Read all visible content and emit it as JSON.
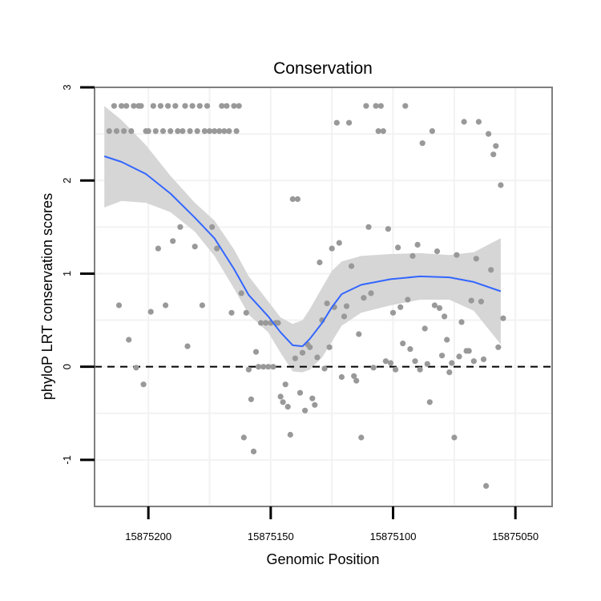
{
  "chart_data": {
    "type": "scatter",
    "title": "Conservation",
    "xlabel": "Genomic Position",
    "ylabel": "phyloP LRT conservation scores",
    "x_reversed": true,
    "xlim": [
      15875035,
      15875222
    ],
    "ylim": [
      -1.5,
      3.0
    ],
    "x_ticks": [
      15875200,
      15875150,
      15875100,
      15875050
    ],
    "x_tick_labels": [
      "15875200",
      "15875150",
      "15875100",
      "15875050"
    ],
    "y_ticks": [
      -1,
      0,
      1,
      2,
      3
    ],
    "y_tick_labels": [
      "-1",
      "0",
      "1",
      "2",
      "3"
    ],
    "reference_line": {
      "y": 0,
      "style": "dashed"
    },
    "colors": {
      "points": "#999999",
      "smooth": "#3366ff",
      "ribbon": "#d6d6d6",
      "grid": "#f2f2f2",
      "panel_border": "#7f7f7f",
      "reference": "#000000"
    },
    "points": [
      [
        15875216,
        2.53
      ],
      [
        15875214,
        2.8
      ],
      [
        15875213,
        2.53
      ],
      [
        15875212,
        0.66
      ],
      [
        15875211,
        2.8
      ],
      [
        15875210,
        2.53
      ],
      [
        15875209,
        2.8
      ],
      [
        15875208,
        0.29
      ],
      [
        15875207,
        2.53
      ],
      [
        15875206,
        2.8
      ],
      [
        15875205,
        -0.01
      ],
      [
        15875204,
        2.8
      ],
      [
        15875203,
        2.8
      ],
      [
        15875202,
        -0.19
      ],
      [
        15875201,
        2.53
      ],
      [
        15875200,
        2.53
      ],
      [
        15875199,
        0.59
      ],
      [
        15875198,
        2.8
      ],
      [
        15875197,
        2.53
      ],
      [
        15875196,
        1.27
      ],
      [
        15875195,
        2.8
      ],
      [
        15875194,
        2.53
      ],
      [
        15875193,
        0.66
      ],
      [
        15875192,
        2.8
      ],
      [
        15875191,
        2.53
      ],
      [
        15875190,
        1.35
      ],
      [
        15875189,
        2.8
      ],
      [
        15875188,
        2.53
      ],
      [
        15875187,
        1.5
      ],
      [
        15875186,
        2.53
      ],
      [
        15875185,
        2.8
      ],
      [
        15875184,
        0.22
      ],
      [
        15875183,
        2.53
      ],
      [
        15875182,
        2.8
      ],
      [
        15875181,
        1.29
      ],
      [
        15875180,
        2.53
      ],
      [
        15875179,
        2.8
      ],
      [
        15875178,
        0.66
      ],
      [
        15875177,
        2.53
      ],
      [
        15875176,
        2.8
      ],
      [
        15875175,
        2.53
      ],
      [
        15875174,
        1.5
      ],
      [
        15875173,
        2.53
      ],
      [
        15875172,
        1.27
      ],
      [
        15875171,
        2.53
      ],
      [
        15875170,
        2.8
      ],
      [
        15875169,
        2.53
      ],
      [
        15875168,
        2.8
      ],
      [
        15875167,
        2.53
      ],
      [
        15875166,
        0.58
      ],
      [
        15875165,
        2.8
      ],
      [
        15875164,
        2.53
      ],
      [
        15875163,
        2.8
      ],
      [
        15875162,
        0.79
      ],
      [
        15875161,
        -0.76
      ],
      [
        15875160,
        0.58
      ],
      [
        15875159,
        -0.03
      ],
      [
        15875158,
        -0.35
      ],
      [
        15875157,
        -0.91
      ],
      [
        15875156,
        0.16
      ],
      [
        15875155,
        0.0
      ],
      [
        15875154,
        0.47
      ],
      [
        15875153,
        0.0
      ],
      [
        15875152,
        0.47
      ],
      [
        15875151,
        0.0
      ],
      [
        15875150,
        0.47
      ],
      [
        15875149,
        0.0
      ],
      [
        15875148,
        0.47
      ],
      [
        15875147,
        0.47
      ],
      [
        15875146,
        -0.32
      ],
      [
        15875145,
        -0.38
      ],
      [
        15875144,
        -0.19
      ],
      [
        15875143,
        -0.43
      ],
      [
        15875142,
        -0.73
      ],
      [
        15875141,
        1.8
      ],
      [
        15875140,
        0.09
      ],
      [
        15875139,
        1.8
      ],
      [
        15875138,
        -0.28
      ],
      [
        15875137,
        0.15
      ],
      [
        15875136,
        -0.47
      ],
      [
        15875135,
        0.24
      ],
      [
        15875134,
        0.21
      ],
      [
        15875133,
        -0.34
      ],
      [
        15875132,
        -0.41
      ],
      [
        15875131,
        0.1
      ],
      [
        15875130,
        1.12
      ],
      [
        15875129,
        0.5
      ],
      [
        15875128,
        -0.02
      ],
      [
        15875127,
        0.68
      ],
      [
        15875126,
        0.21
      ],
      [
        15875125,
        1.27
      ],
      [
        15875124,
        0.64
      ],
      [
        15875123,
        2.62
      ],
      [
        15875122,
        1.33
      ],
      [
        15875121,
        -0.11
      ],
      [
        15875120,
        0.54
      ],
      [
        15875119,
        0.65
      ],
      [
        15875118,
        2.62
      ],
      [
        15875117,
        1.08
      ],
      [
        15875116,
        -0.1
      ],
      [
        15875115,
        -0.15
      ],
      [
        15875114,
        0.35
      ],
      [
        15875113,
        -0.76
      ],
      [
        15875112,
        0.74
      ],
      [
        15875111,
        2.8
      ],
      [
        15875110,
        1.5
      ],
      [
        15875109,
        0.79
      ],
      [
        15875108,
        -0.01
      ],
      [
        15875107,
        2.8
      ],
      [
        15875106,
        2.53
      ],
      [
        15875105,
        2.8
      ],
      [
        15875104,
        2.53
      ],
      [
        15875103,
        0.06
      ],
      [
        15875102,
        1.48
      ],
      [
        15875101,
        0.04
      ],
      [
        15875100,
        0.58
      ],
      [
        15875099,
        -0.03
      ],
      [
        15875098,
        1.28
      ],
      [
        15875097,
        0.64
      ],
      [
        15875096,
        0.25
      ],
      [
        15875095,
        2.8
      ],
      [
        15875094,
        0.72
      ],
      [
        15875093,
        0.19
      ],
      [
        15875092,
        1.19
      ],
      [
        15875091,
        0.06
      ],
      [
        15875090,
        1.31
      ],
      [
        15875089,
        -0.03
      ],
      [
        15875088,
        2.4
      ],
      [
        15875087,
        0.41
      ],
      [
        15875086,
        0.03
      ],
      [
        15875085,
        -0.38
      ],
      [
        15875084,
        2.53
      ],
      [
        15875083,
        0.66
      ],
      [
        15875082,
        1.24
      ],
      [
        15875081,
        0.63
      ],
      [
        15875080,
        0.12
      ],
      [
        15875079,
        0.54
      ],
      [
        15875078,
        0.29
      ],
      [
        15875077,
        -0.06
      ],
      [
        15875076,
        0.04
      ],
      [
        15875075,
        -0.76
      ],
      [
        15875074,
        1.2
      ],
      [
        15875073,
        0.11
      ],
      [
        15875072,
        0.48
      ],
      [
        15875071,
        2.63
      ],
      [
        15875070,
        0.17
      ],
      [
        15875069,
        0.17
      ],
      [
        15875068,
        0.71
      ],
      [
        15875067,
        0.06
      ],
      [
        15875066,
        1.16
      ],
      [
        15875065,
        2.63
      ],
      [
        15875064,
        0.7
      ],
      [
        15875063,
        0.08
      ],
      [
        15875062,
        -1.28
      ],
      [
        15875061,
        2.5
      ],
      [
        15875060,
        1.04
      ],
      [
        15875059,
        2.28
      ],
      [
        15875058,
        2.37
      ],
      [
        15875057,
        0.21
      ],
      [
        15875056,
        1.95
      ],
      [
        15875055,
        0.52
      ]
    ],
    "smooth": [
      [
        15875218,
        2.26
      ],
      [
        15875211,
        2.2
      ],
      [
        15875201,
        2.07
      ],
      [
        15875191,
        1.86
      ],
      [
        15875181,
        1.6
      ],
      [
        15875173,
        1.38
      ],
      [
        15875165,
        1.05
      ],
      [
        15875159,
        0.77
      ],
      [
        15875151,
        0.54
      ],
      [
        15875146,
        0.37
      ],
      [
        15875141,
        0.23
      ],
      [
        15875137,
        0.22
      ],
      [
        15875134,
        0.3
      ],
      [
        15875129,
        0.47
      ],
      [
        15875125,
        0.64
      ],
      [
        15875121,
        0.78
      ],
      [
        15875113,
        0.88
      ],
      [
        15875101,
        0.94
      ],
      [
        15875089,
        0.97
      ],
      [
        15875077,
        0.96
      ],
      [
        15875067,
        0.91
      ],
      [
        15875056,
        0.81
      ]
    ],
    "ribbon_upper": [
      [
        15875218,
        2.8
      ],
      [
        15875211,
        2.65
      ],
      [
        15875201,
        2.38
      ],
      [
        15875191,
        2.05
      ],
      [
        15875181,
        1.76
      ],
      [
        15875173,
        1.57
      ],
      [
        15875165,
        1.26
      ],
      [
        15875159,
        0.97
      ],
      [
        15875151,
        0.7
      ],
      [
        15875146,
        0.53
      ],
      [
        15875141,
        0.46
      ],
      [
        15875137,
        0.5
      ],
      [
        15875134,
        0.62
      ],
      [
        15875129,
        0.85
      ],
      [
        15875125,
        1.03
      ],
      [
        15875121,
        1.13
      ],
      [
        15875113,
        1.19
      ],
      [
        15875101,
        1.21
      ],
      [
        15875089,
        1.22
      ],
      [
        15875077,
        1.2
      ],
      [
        15875067,
        1.23
      ],
      [
        15875056,
        1.38
      ]
    ],
    "ribbon_lower": [
      [
        15875218,
        1.71
      ],
      [
        15875211,
        1.78
      ],
      [
        15875201,
        1.76
      ],
      [
        15875191,
        1.66
      ],
      [
        15875181,
        1.45
      ],
      [
        15875173,
        1.19
      ],
      [
        15875165,
        0.84
      ],
      [
        15875159,
        0.56
      ],
      [
        15875151,
        0.37
      ],
      [
        15875146,
        0.15
      ],
      [
        15875141,
        -0.05
      ],
      [
        15875137,
        -0.06
      ],
      [
        15875134,
        -0.03
      ],
      [
        15875129,
        0.1
      ],
      [
        15875125,
        0.27
      ],
      [
        15875121,
        0.44
      ],
      [
        15875113,
        0.58
      ],
      [
        15875101,
        0.66
      ],
      [
        15875089,
        0.72
      ],
      [
        15875077,
        0.72
      ],
      [
        15875067,
        0.6
      ],
      [
        15875056,
        0.24
      ]
    ]
  }
}
